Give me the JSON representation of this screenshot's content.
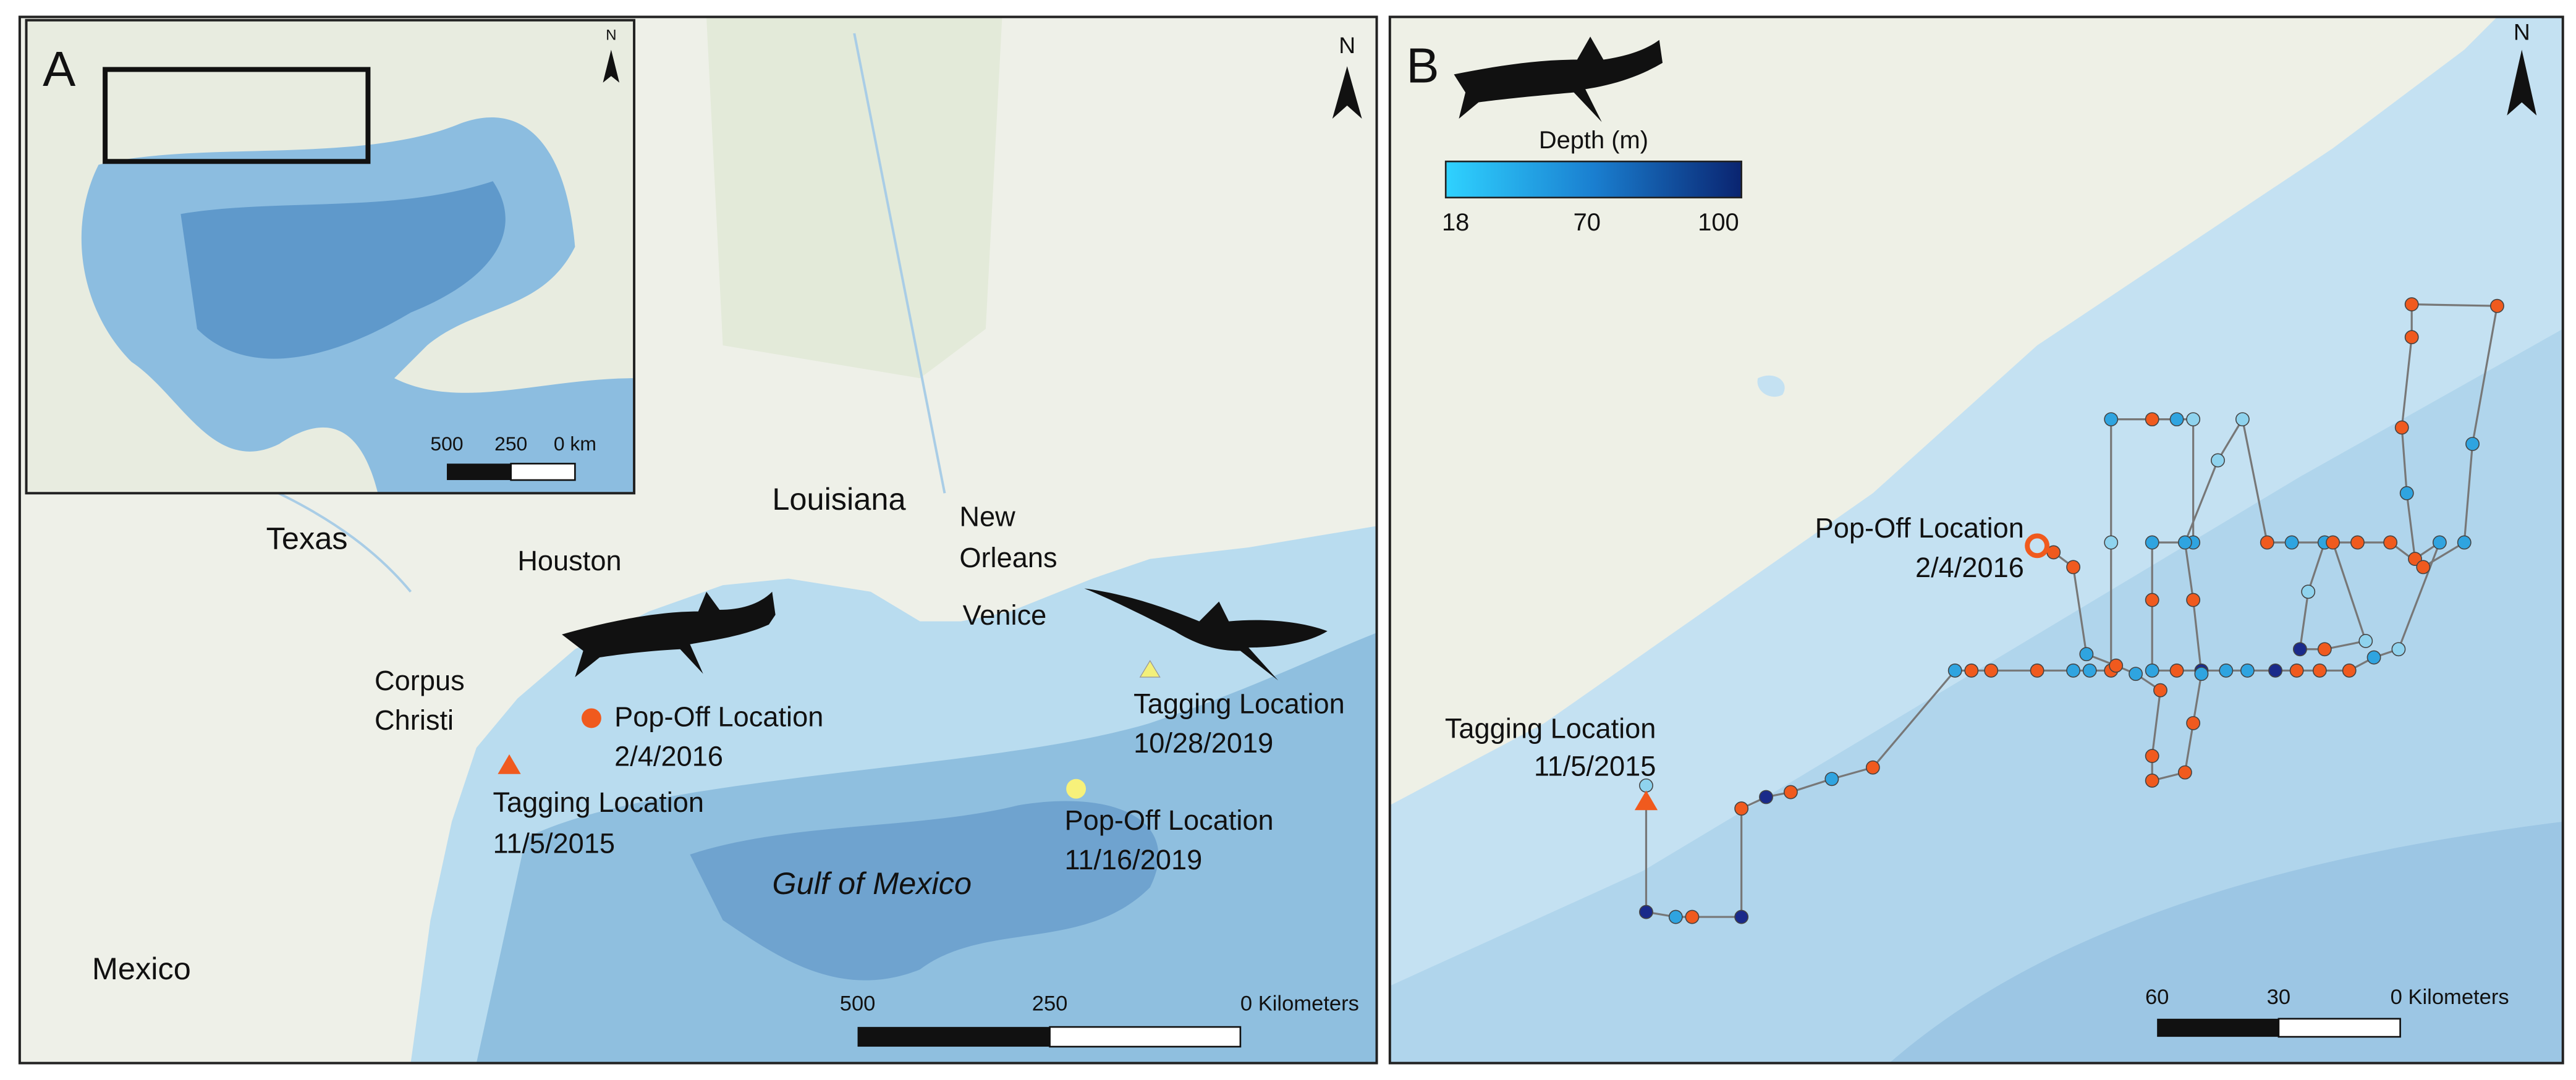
{
  "panel_a": {
    "label": "A",
    "north": "N",
    "inset": {
      "north": "N",
      "scale": [
        "500",
        "250",
        "0 km"
      ]
    },
    "places": {
      "texas": "Texas",
      "houston": "Houston",
      "louisiana": "Louisiana",
      "new_orleans": [
        "New",
        "Orleans"
      ],
      "venice": "Venice",
      "corpus_christi": [
        "Corpus",
        "Christi"
      ],
      "gulf": "Gulf of Mexico",
      "mexico": "Mexico"
    },
    "markers": [
      {
        "label": "Pop-Off Location",
        "date": "2/4/2016"
      },
      {
        "label": "Tagging Location",
        "date": "11/5/2015"
      },
      {
        "label": "Tagging Location",
        "date": "10/28/2019"
      },
      {
        "label": "Pop-Off Location",
        "date": "11/16/2019"
      }
    ],
    "scale": [
      "500",
      "250",
      "0 Kilometers"
    ]
  },
  "panel_b": {
    "label": "B",
    "north": "N",
    "legend": {
      "title": "Depth (m)",
      "labels": [
        "18",
        "70",
        "100"
      ]
    },
    "markers": [
      {
        "label": "Pop-Off Location",
        "date": "2/4/2016"
      },
      {
        "label": "Tagging Location",
        "date": "11/5/2015"
      }
    ],
    "scale": [
      "60",
      "30",
      "0 Kilometers"
    ]
  }
}
